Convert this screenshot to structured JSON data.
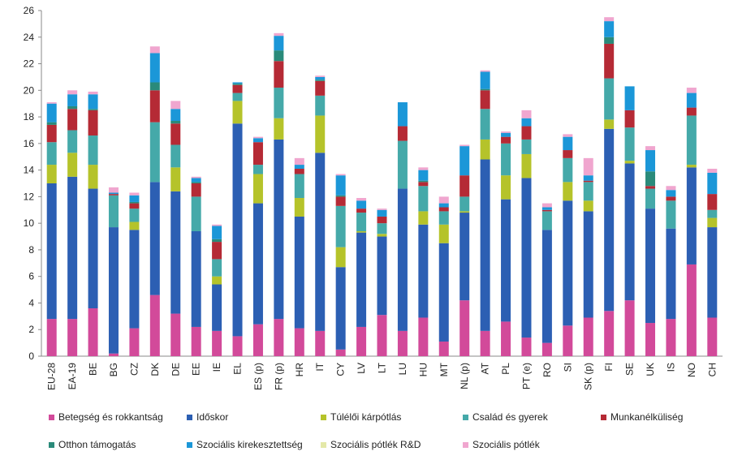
{
  "chart_data": {
    "type": "bar",
    "stacked": true,
    "categories": [
      "EU-28",
      "EA-19",
      "BE",
      "BG",
      "CZ",
      "DK",
      "DE",
      "EE",
      "IE",
      "EL",
      "ES (p)",
      "FR (p)",
      "HR",
      "IT",
      "CY",
      "LV",
      "LT",
      "LU",
      "HU",
      "MT",
      "NL (p)",
      "AT",
      "PL",
      "PT (e)",
      "RO",
      "SI",
      "SK (p)",
      "FI",
      "SE",
      "UK",
      "IS",
      "NO",
      "CH"
    ],
    "ylim": [
      0,
      26
    ],
    "yticks": [
      "0",
      "2",
      "4",
      "6",
      "8",
      "10",
      "12",
      "14",
      "16",
      "18",
      "20",
      "22",
      "24",
      "26"
    ],
    "grid": false,
    "legend_position": "bottom",
    "series": [
      {
        "name": "Betegség és rokkantság",
        "color": "#d24a9a",
        "values": [
          2.8,
          2.8,
          3.6,
          0.2,
          2.1,
          4.6,
          3.2,
          2.2,
          1.9,
          1.5,
          2.4,
          2.8,
          2.1,
          1.9,
          0.5,
          2.2,
          3.1,
          1.9,
          2.9,
          1.1,
          4.2,
          1.9,
          2.6,
          1.4,
          1.0,
          2.3,
          2.9,
          3.4,
          4.2,
          2.5,
          2.8,
          6.9,
          2.9
        ]
      },
      {
        "name": "Időskor",
        "color": "#2c5fb3",
        "values": [
          10.2,
          10.7,
          9.0,
          9.5,
          7.4,
          8.5,
          9.2,
          7.2,
          3.5,
          16.0,
          9.1,
          13.5,
          8.4,
          13.4,
          6.2,
          7.1,
          5.9,
          10.7,
          7.0,
          7.4,
          6.6,
          12.9,
          9.2,
          12.0,
          8.5,
          9.4,
          8.0,
          13.7,
          10.3,
          8.6,
          6.8,
          7.3,
          6.8
        ]
      },
      {
        "name": "Túlélői kárpótlás",
        "color": "#b5c32a",
        "values": [
          1.4,
          1.8,
          1.8,
          0,
          0.6,
          0,
          1.8,
          0,
          0.6,
          1.7,
          2.2,
          1.6,
          1.4,
          2.8,
          1.5,
          0.1,
          0.2,
          0,
          1.0,
          1.4,
          0.1,
          1.5,
          1.8,
          1.8,
          0,
          1.4,
          0.8,
          0.7,
          0.2,
          0,
          0,
          0.2,
          0.7
        ]
      },
      {
        "name": "Család és gyerek",
        "color": "#45a9a9",
        "values": [
          1.7,
          1.7,
          2.2,
          2.4,
          1.0,
          4.5,
          1.7,
          2.6,
          1.3,
          0.6,
          0.7,
          2.3,
          1.8,
          1.5,
          3.1,
          1.4,
          0.8,
          3.6,
          1.9,
          1.0,
          1.1,
          2.3,
          2.4,
          1.1,
          1.4,
          1.8,
          1.4,
          3.1,
          2.5,
          1.5,
          2.1,
          3.7,
          0.6
        ]
      },
      {
        "name": "Munkanélküliség",
        "color": "#b52a35",
        "values": [
          1.3,
          1.6,
          1.9,
          0.1,
          0.4,
          2.4,
          1.6,
          1.0,
          1.3,
          0.6,
          1.7,
          2.0,
          0.4,
          1.1,
          0.7,
          0.3,
          0.5,
          1.1,
          0.3,
          0.3,
          1.6,
          1.4,
          0.5,
          1.0,
          0.1,
          0.6,
          0.1,
          2.6,
          1.3,
          0.2,
          0.3,
          0.6,
          1.2
        ]
      },
      {
        "name": "Otthon támogatás",
        "color": "#2a8a7a",
        "values": [
          0.2,
          0.2,
          0.1,
          0,
          0.1,
          0.6,
          0.2,
          0.1,
          0.2,
          0.1,
          0,
          0.8,
          0,
          0.1,
          0.1,
          0,
          0,
          0,
          0.1,
          0,
          0,
          0.1,
          0,
          0,
          0,
          0,
          0,
          0.5,
          0,
          1.1,
          0,
          0,
          0
        ]
      },
      {
        "name": "Szociális kirekesztettség",
        "color": "#1b97d8",
        "values": [
          1.4,
          0.9,
          1.1,
          0.1,
          0.5,
          2.2,
          0.9,
          0.3,
          1.0,
          0.1,
          0.3,
          1.1,
          0.3,
          0.2,
          1.5,
          0.6,
          0.5,
          1.8,
          0.8,
          0.3,
          2.2,
          1.3,
          0.3,
          0.6,
          0.2,
          1.0,
          0.4,
          1.2,
          1.8,
          1.6,
          0.5,
          1.1,
          1.6
        ]
      },
      {
        "name": "Szociális pótlék R&D",
        "color": "#e4e8a8",
        "values": [
          0,
          0,
          0,
          0,
          0,
          0,
          0,
          0,
          0,
          0,
          0,
          0,
          0,
          0,
          0,
          0,
          0,
          0,
          0,
          0,
          0,
          0,
          0,
          0,
          0,
          0,
          0,
          0,
          0,
          0,
          0,
          0,
          0
        ]
      },
      {
        "name": "Szociális pótlék",
        "color": "#f0a6cf",
        "values": [
          0.1,
          0.3,
          0.2,
          0.4,
          0.2,
          0.5,
          0.6,
          0.1,
          0.1,
          0,
          0.1,
          0.2,
          0.5,
          0.1,
          0.1,
          0.2,
          0.1,
          0,
          0.2,
          0.5,
          0.1,
          0.1,
          0.1,
          0.6,
          0.3,
          0.2,
          1.3,
          0.3,
          0,
          0.3,
          0.3,
          0.4,
          0.3
        ]
      }
    ]
  }
}
